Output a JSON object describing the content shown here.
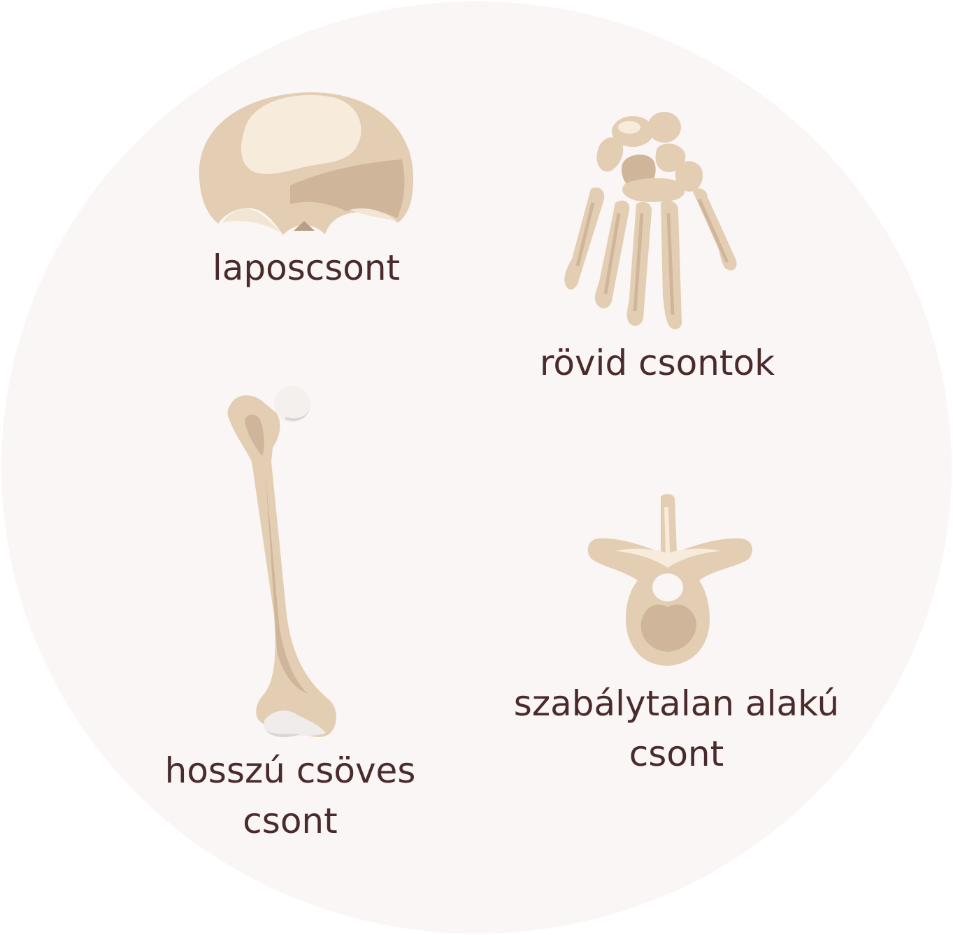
{
  "diagram": {
    "background_color": "#f9f6f5",
    "bone_color": "#e4ceb3",
    "bone_shadow_color": "#cfb69a",
    "bone_highlight_color": "#f7ebdc",
    "text_color": "#4a2a2b",
    "items": [
      {
        "id": "flat",
        "picture": "skull-cap-illustration",
        "lines": [
          "laposcsont"
        ]
      },
      {
        "id": "short",
        "picture": "hand-bones-illustration",
        "lines": [
          "rövid csontok"
        ]
      },
      {
        "id": "long",
        "picture": "femur-illustration",
        "lines": [
          "hosszú csöves",
          "csont"
        ]
      },
      {
        "id": "irregular",
        "picture": "vertebra-illustration",
        "lines": [
          "szabálytalan alakú",
          "csont"
        ]
      }
    ]
  }
}
